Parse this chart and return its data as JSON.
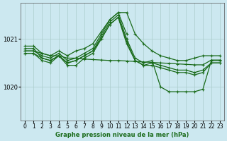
{
  "xlabel": "Graphe pression niveau de la mer (hPa)",
  "background_color": "#cce8f0",
  "grid_color": "#aacccc",
  "line_color": "#1a6b1a",
  "xlim": [
    -0.5,
    23.5
  ],
  "ylim": [
    1019.3,
    1021.75
  ],
  "yticks": [
    1020,
    1021
  ],
  "xticks": [
    0,
    1,
    2,
    3,
    4,
    5,
    6,
    7,
    8,
    9,
    10,
    11,
    12,
    13,
    14,
    15,
    16,
    17,
    18,
    19,
    20,
    21,
    22,
    23
  ],
  "series": [
    {
      "x": [
        0,
        1,
        2,
        3,
        4,
        5,
        6,
        7,
        8,
        9,
        10,
        11,
        12,
        13,
        14,
        15,
        16,
        17,
        18,
        19,
        20,
        21,
        22,
        23
      ],
      "y": [
        1020.85,
        1020.85,
        1020.7,
        1020.65,
        1020.75,
        1020.65,
        1020.75,
        1020.8,
        1020.9,
        1021.15,
        1021.4,
        1021.55,
        1021.55,
        1021.1,
        1020.9,
        1020.75,
        1020.65,
        1020.6,
        1020.55,
        1020.55,
        1020.6,
        1020.65,
        1020.65,
        1020.65
      ]
    },
    {
      "x": [
        0,
        1,
        2,
        3,
        4,
        5,
        6,
        7,
        8,
        9,
        10,
        11,
        12,
        13,
        14,
        15,
        16,
        17,
        18,
        19,
        20,
        21,
        22,
        23
      ],
      "y": [
        1020.8,
        1020.8,
        1020.6,
        1020.55,
        1020.65,
        1020.5,
        1020.55,
        1020.65,
        1020.75,
        1021.05,
        1021.35,
        1021.5,
        1021.0,
        1020.6,
        1020.5,
        1020.55,
        1020.0,
        1019.9,
        1019.9,
        1019.9,
        1019.9,
        1019.95,
        1020.55,
        1020.55
      ]
    },
    {
      "x": [
        0,
        1,
        2,
        3,
        4,
        5,
        6,
        7,
        8,
        9,
        10,
        11,
        12,
        13,
        14,
        15,
        16,
        17,
        18,
        19,
        20,
        21,
        22,
        23
      ],
      "y": [
        1020.75,
        1020.75,
        1020.7,
        1020.65,
        1020.65,
        1020.6,
        1020.6,
        1020.58,
        1020.57,
        1020.56,
        1020.55,
        1020.55,
        1020.54,
        1020.53,
        1020.52,
        1020.51,
        1020.5,
        1020.49,
        1020.48,
        1020.47,
        1020.46,
        1020.46,
        1020.56,
        1020.56
      ]
    },
    {
      "x": [
        0,
        1,
        2,
        3,
        4,
        5,
        6,
        7,
        8,
        9,
        10,
        11,
        12,
        13,
        14,
        15,
        16,
        17,
        18,
        19,
        20,
        21,
        22,
        23
      ],
      "y": [
        1020.7,
        1020.7,
        1020.6,
        1020.55,
        1020.65,
        1020.5,
        1020.55,
        1020.65,
        1020.75,
        1021.0,
        1021.3,
        1021.45,
        1020.95,
        1020.55,
        1020.45,
        1020.5,
        1020.45,
        1020.4,
        1020.35,
        1020.35,
        1020.3,
        1020.35,
        1020.5,
        1020.5
      ]
    },
    {
      "x": [
        0,
        1,
        2,
        3,
        4,
        5,
        6,
        7,
        8,
        9,
        10,
        11,
        12
      ],
      "y": [
        1020.75,
        1020.75,
        1020.65,
        1020.6,
        1020.7,
        1020.55,
        1020.6,
        1020.7,
        1020.8,
        1021.1,
        1021.4,
        1021.55,
        1021.1
      ]
    },
    {
      "x": [
        0,
        1,
        2,
        3,
        4,
        5,
        6,
        7,
        8,
        9,
        10,
        11,
        12,
        13,
        14,
        15,
        16,
        17,
        18,
        19,
        20,
        21,
        22,
        23
      ],
      "y": [
        1020.7,
        1020.7,
        1020.55,
        1020.5,
        1020.65,
        1020.45,
        1020.45,
        1020.6,
        1020.7,
        1021.0,
        1021.3,
        1021.45,
        1020.9,
        1020.55,
        1020.45,
        1020.45,
        1020.4,
        1020.35,
        1020.3,
        1020.3,
        1020.25,
        1020.3,
        1020.5,
        1020.5
      ]
    }
  ]
}
